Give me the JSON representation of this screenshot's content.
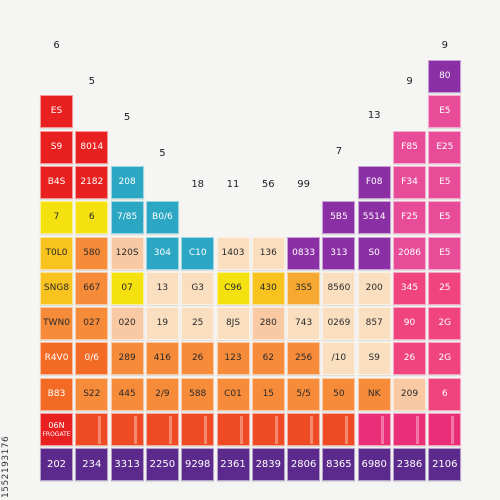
{
  "column_labels": [
    "6",
    "5",
    "5",
    "5",
    "18",
    "11",
    "56",
    "99",
    "7",
    "13",
    "9",
    "9"
  ],
  "colors": {
    "red": "#e8201f",
    "red_orange": "#ee4a24",
    "orange": "#f36a24",
    "light_orange": "#f68b3a",
    "yellow": "#f5e10f",
    "gold": "#f8c21f",
    "amber": "#f6a830",
    "peach": "#f8c9a3",
    "pale_peach": "#f9dfc0",
    "teal": "#2ba6c3",
    "purple": "#8b2fa4",
    "magenta": "#e84c99",
    "pink": "#f0447f",
    "hot_pink": "#ea2e78",
    "deep_purple": "#5b2a8c"
  },
  "cells": [
    {
      "id": "r1c12",
      "text": "80",
      "color": "purple"
    },
    {
      "id": "r2c1",
      "text": "ES",
      "color": "red"
    },
    {
      "id": "r2c12",
      "text": "E5",
      "color": "magenta"
    },
    {
      "id": "r3c1",
      "text": "S9",
      "color": "red"
    },
    {
      "id": "r3c2",
      "text": "8014",
      "color": "red"
    },
    {
      "id": "r3c11",
      "text": "F85",
      "color": "magenta"
    },
    {
      "id": "r3c12",
      "text": "E25",
      "color": "magenta"
    },
    {
      "id": "r4c1",
      "text": "B4S",
      "color": "red"
    },
    {
      "id": "r4c2",
      "text": "2182",
      "color": "red"
    },
    {
      "id": "r4c3",
      "text": "208",
      "color": "teal"
    },
    {
      "id": "r4c10",
      "text": "F08",
      "color": "purple"
    },
    {
      "id": "r4c11",
      "text": "F34",
      "color": "magenta"
    },
    {
      "id": "r4c12",
      "text": "E5",
      "color": "magenta"
    },
    {
      "id": "r5c1",
      "text": "7",
      "color": "yellow"
    },
    {
      "id": "r5c2",
      "text": "6",
      "color": "yellow"
    },
    {
      "id": "r5c3",
      "text": "7/85",
      "color": "teal"
    },
    {
      "id": "r5c4",
      "text": "B0/6",
      "color": "teal"
    },
    {
      "id": "r5c9",
      "text": "5B5",
      "color": "purple"
    },
    {
      "id": "r5c10",
      "text": "5514",
      "color": "purple"
    },
    {
      "id": "r5c11",
      "text": "F25",
      "color": "magenta"
    },
    {
      "id": "r5c12",
      "text": "E5",
      "color": "magenta"
    },
    {
      "id": "r6c1",
      "text": "T0L0",
      "color": "gold"
    },
    {
      "id": "r6c2",
      "text": "580",
      "color": "light_orange"
    },
    {
      "id": "r6c3",
      "text": "120S",
      "color": "peach"
    },
    {
      "id": "r6c4",
      "text": "304",
      "color": "teal"
    },
    {
      "id": "r6c5",
      "text": "C10",
      "color": "teal"
    },
    {
      "id": "r6c6",
      "text": "1403",
      "color": "pale_peach"
    },
    {
      "id": "r6c7",
      "text": "136",
      "color": "pale_peach"
    },
    {
      "id": "r6c8",
      "text": "0833",
      "color": "purple"
    },
    {
      "id": "r6c9",
      "text": "313",
      "color": "purple"
    },
    {
      "id": "r6c10",
      "text": "S0",
      "color": "purple"
    },
    {
      "id": "r6c11",
      "text": "2086",
      "color": "magenta"
    },
    {
      "id": "r6c12",
      "text": "E5",
      "color": "magenta"
    },
    {
      "id": "r7c1",
      "text": "SNG8",
      "color": "gold"
    },
    {
      "id": "r7c2",
      "text": "667",
      "color": "light_orange"
    },
    {
      "id": "r7c3",
      "text": "07",
      "color": "yellow"
    },
    {
      "id": "r7c4",
      "text": "13",
      "color": "pale_peach"
    },
    {
      "id": "r7c5",
      "text": "G3",
      "color": "pale_peach"
    },
    {
      "id": "r7c6",
      "text": "C96",
      "color": "yellow"
    },
    {
      "id": "r7c7",
      "text": "430",
      "color": "gold"
    },
    {
      "id": "r7c8",
      "text": "3S5",
      "color": "amber"
    },
    {
      "id": "r7c9",
      "text": "8560",
      "color": "pale_peach"
    },
    {
      "id": "r7c10",
      "text": "200",
      "color": "pale_peach"
    },
    {
      "id": "r7c11",
      "text": "345",
      "color": "pink"
    },
    {
      "id": "r7c12",
      "text": "25",
      "color": "pink"
    },
    {
      "id": "r8c1",
      "text": "TWN0",
      "color": "light_orange"
    },
    {
      "id": "r8c2",
      "text": "027",
      "color": "light_orange"
    },
    {
      "id": "r8c3",
      "text": "020",
      "color": "peach"
    },
    {
      "id": "r8c4",
      "text": "19",
      "color": "pale_peach"
    },
    {
      "id": "r8c5",
      "text": "25",
      "color": "pale_peach"
    },
    {
      "id": "r8c6",
      "text": "8JS",
      "color": "pale_peach"
    },
    {
      "id": "r8c7",
      "text": "280",
      "color": "peach"
    },
    {
      "id": "r8c8",
      "text": "743",
      "color": "pale_peach"
    },
    {
      "id": "r8c9",
      "text": "0269",
      "color": "pale_peach"
    },
    {
      "id": "r8c10",
      "text": "857",
      "color": "pale_peach"
    },
    {
      "id": "r8c11",
      "text": "90",
      "color": "pink"
    },
    {
      "id": "r8c12",
      "text": "2G",
      "color": "pink"
    },
    {
      "id": "r9c1",
      "text": "R4V0",
      "color": "orange"
    },
    {
      "id": "r9c2",
      "text": "0/6",
      "color": "orange"
    },
    {
      "id": "r9c3",
      "text": "289",
      "color": "light_orange"
    },
    {
      "id": "r9c4",
      "text": "416",
      "color": "light_orange"
    },
    {
      "id": "r9c5",
      "text": "26",
      "color": "light_orange"
    },
    {
      "id": "r9c6",
      "text": "123",
      "color": "light_orange"
    },
    {
      "id": "r9c7",
      "text": "62",
      "color": "light_orange"
    },
    {
      "id": "r9c8",
      "text": "256",
      "color": "light_orange"
    },
    {
      "id": "r9c9",
      "text": "/10",
      "color": "pale_peach"
    },
    {
      "id": "r9c10",
      "text": "S9",
      "color": "pale_peach"
    },
    {
      "id": "r9c11",
      "text": "26",
      "color": "pink"
    },
    {
      "id": "r9c12",
      "text": "2G",
      "color": "pink"
    },
    {
      "id": "r10c1",
      "text": "B83",
      "color": "orange"
    },
    {
      "id": "r10c2",
      "text": "S22",
      "color": "light_orange"
    },
    {
      "id": "r10c3",
      "text": "445",
      "color": "light_orange"
    },
    {
      "id": "r10c4",
      "text": "2/9",
      "color": "light_orange"
    },
    {
      "id": "r10c5",
      "text": "588",
      "color": "light_orange"
    },
    {
      "id": "r10c6",
      "text": "C01",
      "color": "light_orange"
    },
    {
      "id": "r10c7",
      "text": "15",
      "color": "light_orange"
    },
    {
      "id": "r10c8",
      "text": "5/5",
      "color": "light_orange"
    },
    {
      "id": "r10c9",
      "text": "50",
      "color": "light_orange"
    },
    {
      "id": "r10c10",
      "text": "NK",
      "color": "light_orange"
    },
    {
      "id": "r10c11",
      "text": "209",
      "color": "peach"
    },
    {
      "id": "r10c12",
      "text": "6",
      "color": "pink"
    },
    {
      "id": "r11c1",
      "text": "06N",
      "text2": "FROGATE",
      "color": "red"
    },
    {
      "id": "r11c2",
      "text": "",
      "color": "red_orange"
    },
    {
      "id": "r11c3",
      "text": "",
      "color": "red_orange"
    },
    {
      "id": "r11c4",
      "text": "",
      "color": "red_orange"
    },
    {
      "id": "r11c5",
      "text": "",
      "color": "red_orange"
    },
    {
      "id": "r11c6",
      "text": "",
      "color": "red_orange"
    },
    {
      "id": "r11c7",
      "text": "",
      "color": "red_orange"
    },
    {
      "id": "r11c8",
      "text": "",
      "color": "red_orange"
    },
    {
      "id": "r11c9",
      "text": "",
      "color": "red_orange"
    },
    {
      "id": "r11c10",
      "text": "",
      "color": "hot_pink"
    },
    {
      "id": "r11c11",
      "text": "",
      "color": "hot_pink"
    },
    {
      "id": "r11c12",
      "text": "",
      "color": "hot_pink"
    },
    {
      "id": "r12c1",
      "text": "202",
      "color": "deep_purple"
    },
    {
      "id": "r12c2",
      "text": "234",
      "color": "deep_purple"
    },
    {
      "id": "r12c3",
      "text": "3313",
      "color": "deep_purple"
    },
    {
      "id": "r12c4",
      "text": "2250",
      "color": "deep_purple"
    },
    {
      "id": "r12c5",
      "text": "9298",
      "color": "deep_purple"
    },
    {
      "id": "r12c6",
      "text": "2361",
      "color": "deep_purple"
    },
    {
      "id": "r12c7",
      "text": "2839",
      "color": "deep_purple"
    },
    {
      "id": "r12c8",
      "text": "2806",
      "color": "deep_purple"
    },
    {
      "id": "r12c9",
      "text": "8365",
      "color": "deep_purple"
    },
    {
      "id": "r12c10",
      "text": "6980",
      "color": "deep_purple"
    },
    {
      "id": "r12c11",
      "text": "2386",
      "color": "deep_purple"
    },
    {
      "id": "r12c12",
      "text": "2106",
      "color": "deep_purple"
    }
  ],
  "watermark": "1552193176"
}
